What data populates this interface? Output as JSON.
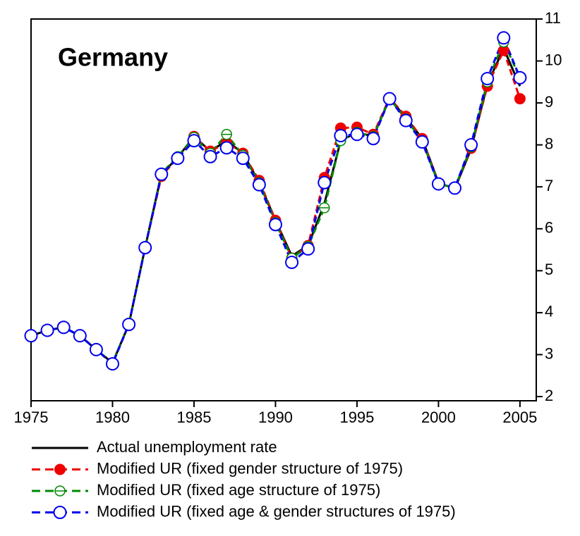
{
  "chart_data": {
    "type": "line",
    "title": "Germany",
    "x": [
      1975,
      1976,
      1977,
      1978,
      1979,
      1980,
      1981,
      1982,
      1983,
      1984,
      1985,
      1986,
      1987,
      1988,
      1989,
      1990,
      1991,
      1992,
      1993,
      1994,
      1995,
      1996,
      1997,
      1998,
      1999,
      2000,
      2001,
      2002,
      2003,
      2004,
      2005
    ],
    "series": [
      {
        "name": "Actual unemployment rate",
        "color": "#000000",
        "dashed": false,
        "marker": "none",
        "values": [
          3.45,
          3.58,
          3.65,
          3.45,
          3.12,
          2.8,
          3.72,
          5.55,
          7.3,
          7.7,
          8.2,
          7.85,
          8.1,
          7.8,
          7.1,
          6.2,
          5.35,
          5.6,
          6.6,
          8.1,
          8.3,
          8.2,
          9.1,
          8.65,
          8.15,
          7.1,
          6.95,
          7.9,
          9.45,
          10.3,
          9.4
        ]
      },
      {
        "name": "Modified UR (fixed gender structure of 1975)",
        "color": "#ee0000",
        "dashed": true,
        "marker": "filled",
        "values": [
          3.45,
          3.58,
          3.65,
          3.45,
          3.12,
          2.78,
          3.72,
          5.55,
          7.25,
          7.7,
          8.2,
          7.85,
          8.05,
          7.8,
          7.15,
          6.2,
          5.3,
          5.6,
          7.22,
          8.4,
          8.42,
          8.25,
          9.12,
          8.68,
          8.15,
          7.08,
          6.97,
          7.92,
          9.4,
          10.25,
          9.1
        ]
      },
      {
        "name": "Modified UR (fixed age structure of 1975)",
        "color": "#008800",
        "dashed": true,
        "marker": "crossed",
        "values": [
          3.45,
          3.58,
          3.65,
          3.45,
          3.12,
          2.8,
          3.72,
          5.55,
          7.32,
          7.72,
          8.18,
          7.8,
          8.25,
          7.75,
          7.1,
          6.15,
          5.3,
          5.58,
          6.5,
          8.1,
          8.3,
          8.2,
          9.1,
          8.62,
          8.1,
          7.08,
          6.97,
          7.95,
          9.5,
          10.45,
          9.6
        ]
      },
      {
        "name": "Modified UR (fixed age & gender structures of 1975)",
        "color": "#0000ee",
        "dashed": true,
        "marker": "open",
        "values": [
          3.45,
          3.58,
          3.65,
          3.45,
          3.12,
          2.78,
          3.72,
          5.55,
          7.3,
          7.68,
          8.1,
          7.72,
          7.93,
          7.68,
          7.05,
          6.1,
          5.2,
          5.52,
          7.1,
          8.22,
          8.25,
          8.15,
          9.1,
          8.58,
          8.07,
          7.07,
          6.97,
          8.0,
          9.58,
          10.55,
          9.6
        ]
      }
    ],
    "xlim": [
      1975,
      2006
    ],
    "xticks": [
      1975,
      1980,
      1985,
      1990,
      1995,
      2000,
      2005
    ],
    "ylim": [
      1.9,
      11
    ],
    "yticks": [
      2,
      3,
      4,
      5,
      6,
      7,
      8,
      9,
      10,
      11
    ]
  }
}
